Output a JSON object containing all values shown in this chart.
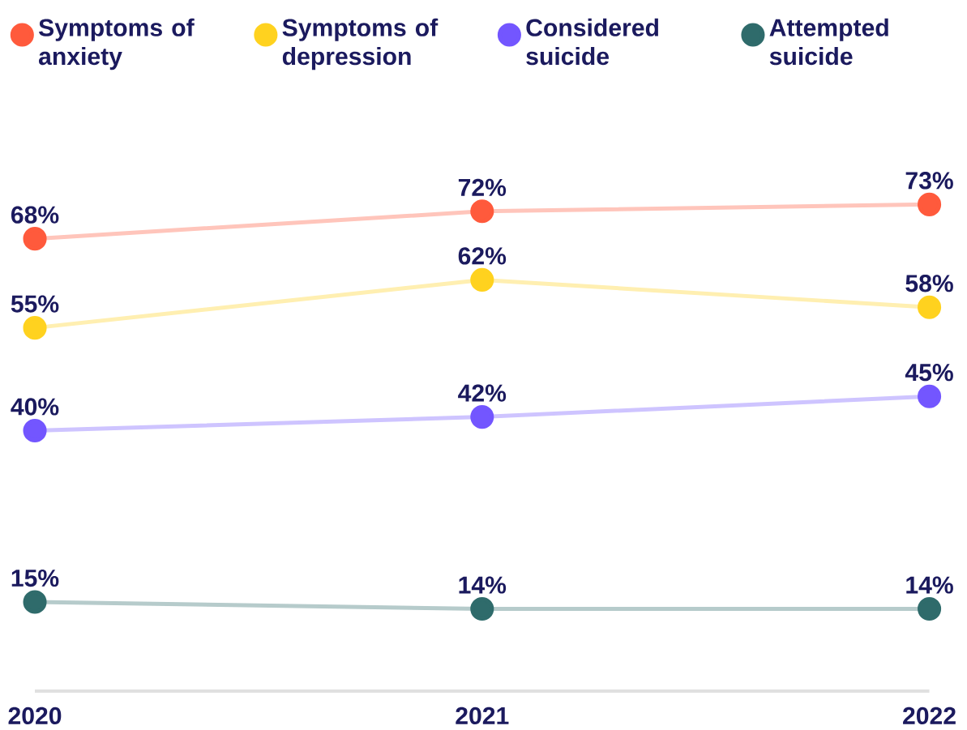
{
  "chart_data": {
    "type": "line",
    "categories": [
      "2020",
      "2021",
      "2022"
    ],
    "series": [
      {
        "name": "Symptoms of anxiety",
        "color": "#ff5a3c",
        "values": [
          68,
          72,
          73
        ],
        "value_labels": [
          "68%",
          "72%",
          "73%"
        ]
      },
      {
        "name": "Symptoms of depression",
        "color": "#ffd21f",
        "values": [
          55,
          62,
          58
        ],
        "value_labels": [
          "55%",
          "62%",
          "58%"
        ]
      },
      {
        "name": "Considered suicide",
        "color": "#7356ff",
        "values": [
          40,
          42,
          45
        ],
        "value_labels": [
          "40%",
          "42%",
          "45%"
        ]
      },
      {
        "name": "Attempted suicide",
        "color": "#2f6b6b",
        "values": [
          15,
          14,
          14
        ],
        "value_labels": [
          "15%",
          "14%",
          "14%"
        ]
      }
    ],
    "legend": "top",
    "marker": "circle",
    "line_style": "solid",
    "tick_labels": "x"
  }
}
